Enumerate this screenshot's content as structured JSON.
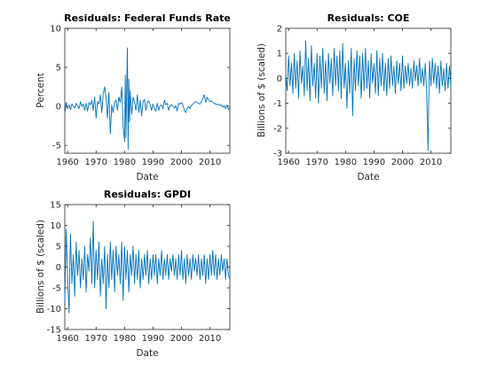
{
  "chart_data": [
    {
      "type": "line",
      "title": "Residuals: Federal Funds Rate",
      "xlabel": "Date",
      "ylabel": "Percent",
      "xlim": [
        1959,
        2017
      ],
      "ylim": [
        -6,
        10
      ],
      "xticks": [
        1960,
        1970,
        1980,
        1990,
        2000,
        2010
      ],
      "yticks": [
        -5,
        0,
        5,
        10
      ],
      "color": "#0072bd",
      "series": [
        {
          "x": [
            1959.0,
            1959.5,
            1960.0,
            1960.5,
            1961.0,
            1961.5,
            1962.0,
            1962.5,
            1963.0,
            1963.5,
            1964.0,
            1964.5,
            1965.0,
            1965.5,
            1966.0,
            1966.5,
            1967.0,
            1967.5,
            1968.0,
            1968.5,
            1969.0,
            1969.5,
            1970.0,
            1970.5,
            1971.0,
            1971.5,
            1972.0,
            1972.5,
            1973.0,
            1973.5,
            1974.0,
            1974.5,
            1975.0,
            1975.5,
            1976.0,
            1976.5,
            1977.0,
            1977.5,
            1978.0,
            1978.5,
            1979.0,
            1979.5,
            1980.0,
            1980.25,
            1980.5,
            1980.75,
            1981.0,
            1981.25,
            1981.5,
            1981.75,
            1982.0,
            1982.5,
            1983.0,
            1983.5,
            1984.0,
            1984.5,
            1985.0,
            1985.5,
            1986.0,
            1986.5,
            1987.0,
            1987.5,
            1988.0,
            1988.5,
            1989.0,
            1989.5,
            1990.0,
            1990.5,
            1991.0,
            1991.5,
            1992.0,
            1992.5,
            1993.0,
            1993.5,
            1994.0,
            1994.5,
            1995.0,
            1995.5,
            1996.0,
            1996.5,
            1997.0,
            1997.5,
            1998.0,
            1998.5,
            1999.0,
            1999.5,
            2000.0,
            2000.5,
            2001.0,
            2001.5,
            2002.0,
            2002.5,
            2003.0,
            2003.5,
            2004.0,
            2004.5,
            2005.0,
            2005.5,
            2006.0,
            2006.5,
            2007.0,
            2007.5,
            2008.0,
            2008.5,
            2009.0,
            2009.5,
            2010.0,
            2010.5,
            2011.0,
            2011.5,
            2012.0,
            2012.5,
            2013.0,
            2013.5,
            2014.0,
            2014.5,
            2015.0,
            2015.5,
            2016.0,
            2016.5,
            2017.0
          ],
          "y": [
            -1.0,
            0.5,
            -0.3,
            0.2,
            -0.4,
            0.3,
            0.0,
            -0.2,
            0.4,
            0.1,
            -0.3,
            0.6,
            0.0,
            0.3,
            -0.5,
            0.4,
            -0.6,
            0.5,
            0.2,
            0.8,
            -0.5,
            1.2,
            -1.5,
            0.6,
            0.3,
            1.5,
            -0.8,
            1.6,
            2.5,
            1.0,
            -1.5,
            1.8,
            -3.5,
            0.2,
            -0.8,
            0.5,
            0.8,
            -0.5,
            1.2,
            0.5,
            2.5,
            -2.5,
            -4.5,
            4.0,
            -4.0,
            2.5,
            7.5,
            -5.5,
            3.5,
            -2.0,
            2.0,
            -1.0,
            1.2,
            0.5,
            -0.5,
            1.5,
            -0.8,
            0.8,
            -1.2,
            0.6,
            0.9,
            -0.5,
            0.5,
            0.7,
            0.2,
            -0.5,
            0.3,
            -0.3,
            -0.6,
            0.4,
            -0.5,
            0.1,
            0.2,
            -0.3,
            0.8,
            0.2,
            0.4,
            -0.5,
            0.1,
            0.2,
            0.0,
            -0.2,
            0.1,
            -0.6,
            0.4,
            0.3,
            0.5,
            0.2,
            -0.5,
            -0.8,
            -0.2,
            0.0,
            -0.3,
            0.1,
            0.3,
            0.5,
            0.6,
            0.5,
            0.4,
            0.3,
            0.6,
            1.0,
            1.5,
            0.5,
            1.2,
            0.8,
            0.6,
            0.7,
            0.5,
            0.4,
            0.3,
            0.2,
            0.3,
            0.1,
            0.2,
            -0.1,
            0.1,
            -0.3,
            0.2,
            -0.4,
            -0.2
          ]
        }
      ]
    },
    {
      "type": "line",
      "title": "Residuals: COE",
      "xlabel": "Date",
      "ylabel": "Billions of $ (scaled)",
      "xlim": [
        1959,
        2017
      ],
      "ylim": [
        -3,
        2
      ],
      "xticks": [
        1960,
        1970,
        1980,
        1990,
        2000,
        2010
      ],
      "yticks": [
        -3,
        -2,
        -1,
        0,
        1,
        2
      ],
      "color": "#0072bd",
      "series": [
        {
          "x": [
            1959.0,
            1959.5,
            1960.0,
            1960.5,
            1961.0,
            1961.5,
            1962.0,
            1962.5,
            1963.0,
            1963.5,
            1964.0,
            1964.5,
            1965.0,
            1965.5,
            1966.0,
            1966.5,
            1967.0,
            1967.5,
            1968.0,
            1968.5,
            1969.0,
            1969.5,
            1970.0,
            1970.5,
            1971.0,
            1971.5,
            1972.0,
            1972.5,
            1973.0,
            1973.5,
            1974.0,
            1974.5,
            1975.0,
            1975.5,
            1976.0,
            1976.5,
            1977.0,
            1977.5,
            1978.0,
            1978.5,
            1979.0,
            1979.5,
            1980.0,
            1980.5,
            1981.0,
            1981.5,
            1982.0,
            1982.5,
            1983.0,
            1983.5,
            1984.0,
            1984.5,
            1985.0,
            1985.5,
            1986.0,
            1986.5,
            1987.0,
            1987.5,
            1988.0,
            1988.5,
            1989.0,
            1989.5,
            1990.0,
            1990.5,
            1991.0,
            1991.5,
            1992.0,
            1992.5,
            1993.0,
            1993.5,
            1994.0,
            1994.5,
            1995.0,
            1995.5,
            1996.0,
            1996.5,
            1997.0,
            1997.5,
            1998.0,
            1998.5,
            1999.0,
            1999.5,
            2000.0,
            2000.5,
            2001.0,
            2001.5,
            2002.0,
            2002.5,
            2003.0,
            2003.5,
            2004.0,
            2004.5,
            2005.0,
            2005.5,
            2006.0,
            2006.5,
            2007.0,
            2007.5,
            2008.0,
            2008.5,
            2009.0,
            2009.25,
            2009.5,
            2010.0,
            2010.5,
            2011.0,
            2011.5,
            2012.0,
            2012.5,
            2013.0,
            2013.5,
            2014.0,
            2014.5,
            2015.0,
            2015.5,
            2016.0,
            2016.5,
            2017.0
          ],
          "y": [
            0.2,
            -0.5,
            0.9,
            -0.3,
            0.6,
            -0.6,
            1.0,
            -0.4,
            0.7,
            -0.8,
            1.1,
            -0.2,
            0.5,
            -0.7,
            1.5,
            -0.5,
            0.8,
            -0.9,
            1.3,
            -0.3,
            0.6,
            -0.8,
            1.0,
            -1.0,
            0.9,
            -0.4,
            1.2,
            -0.6,
            0.7,
            -0.9,
            1.0,
            -0.2,
            0.8,
            -0.7,
            1.2,
            -0.3,
            0.9,
            -0.5,
            1.1,
            -0.8,
            1.4,
            -0.4,
            0.6,
            -1.2,
            0.7,
            -0.6,
            1.2,
            -1.5,
            0.8,
            -0.5,
            1.1,
            -0.3,
            0.9,
            -0.8,
            1.0,
            -0.5,
            1.2,
            -0.4,
            0.7,
            -0.8,
            1.0,
            -0.2,
            0.6,
            -0.6,
            1.1,
            -0.7,
            0.8,
            -0.3,
            1.0,
            -0.5,
            0.6,
            -0.7,
            0.8,
            -0.4,
            0.9,
            -0.3,
            0.5,
            -0.6,
            0.7,
            -0.2,
            0.6,
            -0.5,
            0.9,
            -0.4,
            0.5,
            -0.2,
            0.6,
            -0.3,
            0.4,
            -0.4,
            0.7,
            -0.1,
            0.5,
            -0.3,
            0.8,
            -0.2,
            0.4,
            -0.3,
            0.6,
            -0.5,
            -2.9,
            -0.8,
            0.7,
            -0.3,
            0.8,
            -0.2,
            0.6,
            -0.4,
            0.5,
            -0.6,
            0.7,
            -0.3,
            0.4,
            -0.5,
            0.6,
            -0.4,
            0.5,
            -0.3
          ]
        }
      ]
    },
    {
      "type": "line",
      "title": "Residuals: GPDI",
      "xlabel": "Date",
      "ylabel": "Billions of $ (scaled)",
      "xlim": [
        1959,
        2017
      ],
      "ylim": [
        -15,
        15
      ],
      "xticks": [
        1960,
        1970,
        1980,
        1990,
        2000,
        2010
      ],
      "yticks": [
        -15,
        -10,
        -5,
        0,
        5,
        10,
        15
      ],
      "color": "#0072bd",
      "series": [
        {
          "x": [
            1959.0,
            1959.5,
            1960.0,
            1960.5,
            1961.0,
            1961.5,
            1962.0,
            1962.5,
            1963.0,
            1963.5,
            1964.0,
            1964.5,
            1965.0,
            1965.5,
            1966.0,
            1966.5,
            1967.0,
            1967.5,
            1968.0,
            1968.5,
            1969.0,
            1969.5,
            1970.0,
            1970.5,
            1971.0,
            1971.5,
            1972.0,
            1972.5,
            1973.0,
            1973.5,
            1974.0,
            1974.5,
            1975.0,
            1975.5,
            1976.0,
            1976.5,
            1977.0,
            1977.5,
            1978.0,
            1978.5,
            1979.0,
            1979.5,
            1980.0,
            1980.5,
            1981.0,
            1981.5,
            1982.0,
            1982.5,
            1983.0,
            1983.5,
            1984.0,
            1984.5,
            1985.0,
            1985.5,
            1986.0,
            1986.5,
            1987.0,
            1987.5,
            1988.0,
            1988.5,
            1989.0,
            1989.5,
            1990.0,
            1990.5,
            1991.0,
            1991.5,
            1992.0,
            1992.5,
            1993.0,
            1993.5,
            1994.0,
            1994.5,
            1995.0,
            1995.5,
            1996.0,
            1996.5,
            1997.0,
            1997.5,
            1998.0,
            1998.5,
            1999.0,
            1999.5,
            2000.0,
            2000.5,
            2001.0,
            2001.5,
            2002.0,
            2002.5,
            2003.0,
            2003.5,
            2004.0,
            2004.5,
            2005.0,
            2005.5,
            2006.0,
            2006.5,
            2007.0,
            2007.5,
            2008.0,
            2008.5,
            2009.0,
            2009.5,
            2010.0,
            2010.5,
            2011.0,
            2011.5,
            2012.0,
            2012.5,
            2013.0,
            2013.5,
            2014.0,
            2014.5,
            2015.0,
            2015.5,
            2016.0,
            2016.5,
            2017.0
          ],
          "y": [
            -8.0,
            9.0,
            -3.0,
            -11.0,
            8.0,
            -4.0,
            3.0,
            -7.0,
            6.0,
            -2.0,
            4.0,
            -5.0,
            2.0,
            -3.0,
            5.0,
            -6.0,
            3.0,
            -1.0,
            7.0,
            -4.0,
            11.0,
            -5.0,
            4.0,
            -3.0,
            6.0,
            -7.0,
            2.0,
            -4.0,
            5.0,
            -10.0,
            3.0,
            -5.0,
            6.0,
            -3.0,
            4.0,
            -6.0,
            5.0,
            -2.0,
            3.0,
            -4.0,
            6.0,
            -8.0,
            5.0,
            -3.0,
            4.0,
            -6.0,
            3.0,
            -2.0,
            5.0,
            -4.0,
            3.0,
            -3.0,
            4.0,
            -5.0,
            2.0,
            -3.0,
            3.0,
            -2.0,
            4.0,
            -4.0,
            2.0,
            -3.0,
            3.0,
            -2.0,
            3.0,
            -4.0,
            2.0,
            -2.0,
            4.0,
            -3.0,
            2.0,
            -2.0,
            3.0,
            -3.0,
            2.0,
            -1.0,
            3.0,
            -2.0,
            2.0,
            -3.0,
            3.0,
            -2.0,
            4.0,
            -3.0,
            2.0,
            -4.0,
            3.0,
            -2.0,
            2.0,
            -3.0,
            3.0,
            -1.0,
            2.0,
            -2.0,
            3.0,
            -3.0,
            2.0,
            -2.0,
            3.0,
            -4.0,
            2.0,
            -3.0,
            3.0,
            -2.0,
            4.0,
            -2.0,
            3.0,
            -3.0,
            2.0,
            -2.0,
            3.0,
            -1.0,
            2.0,
            -3.0,
            2.0,
            -2.0,
            -3.0
          ]
        }
      ]
    }
  ]
}
